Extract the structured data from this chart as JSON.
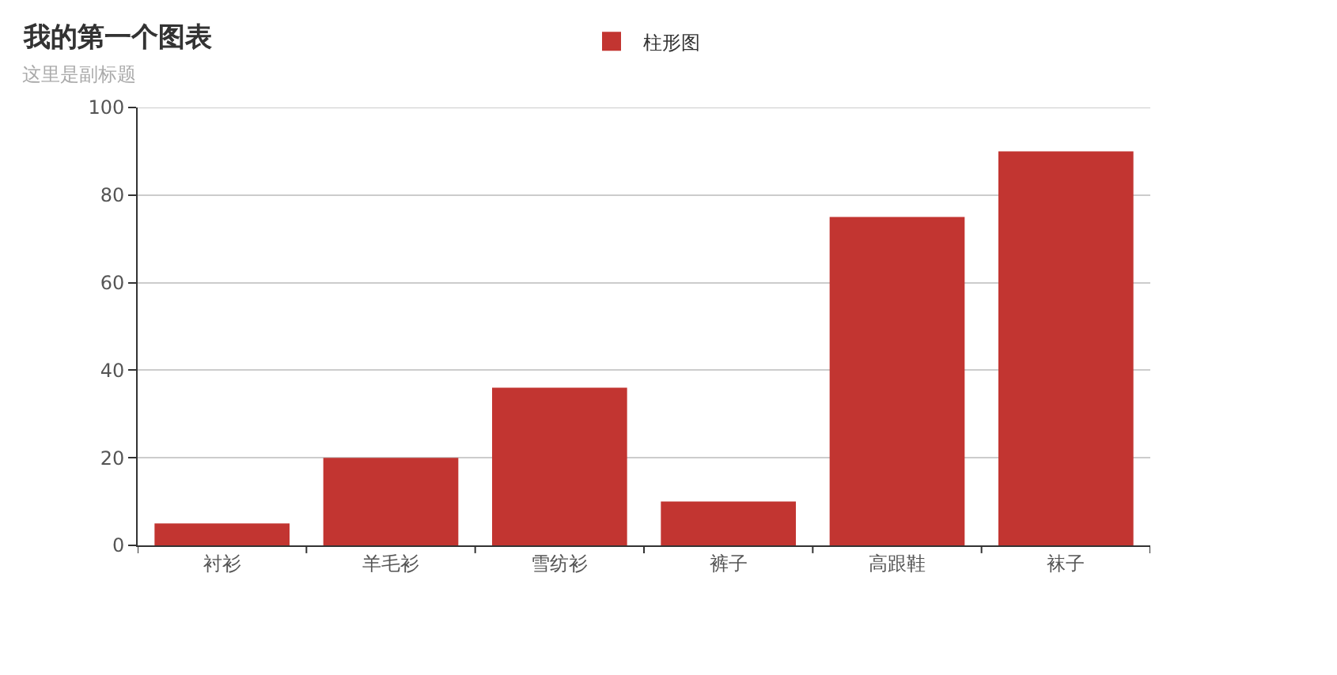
{
  "chart_data": {
    "type": "bar",
    "title": "我的第一个图表",
    "subtitle": "这里是副标题",
    "categories": [
      "衬衫",
      "羊毛衫",
      "雪纺衫",
      "裤子",
      "高跟鞋",
      "袜子"
    ],
    "series": [
      {
        "name": "柱形图",
        "color": "#c23531",
        "values": [
          5,
          20,
          36,
          10,
          75,
          90
        ]
      }
    ],
    "ylim": [
      0,
      100
    ],
    "yticks": [
      0,
      20,
      40,
      60,
      80,
      100
    ],
    "grid": "y",
    "legend": "top"
  }
}
